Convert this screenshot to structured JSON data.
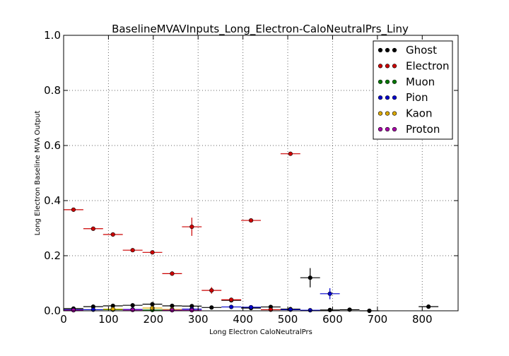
{
  "chart_data": {
    "type": "scatter",
    "title": "BaselineMVAVInputs_Long_Electron-CaloNeutralPrs_Liny",
    "xlabel": "Long Electron CaloNeutralPrs",
    "ylabel": "Long Electron Baseline MVA Output",
    "xlim": [
      0,
      880
    ],
    "ylim": [
      0,
      1.0
    ],
    "grid": true,
    "legend_position": "top-right",
    "xticks": [
      0,
      100,
      200,
      300,
      400,
      500,
      600,
      700,
      800
    ],
    "yticks": [
      0.0,
      0.2,
      0.4,
      0.6,
      0.8,
      1.0
    ],
    "series": [
      {
        "name": "Ghost",
        "color": "#000000",
        "points": [
          {
            "x": 22,
            "y": 0.008,
            "xerr": 22,
            "yerr": 0.002
          },
          {
            "x": 66,
            "y": 0.015,
            "xerr": 22,
            "yerr": 0.002
          },
          {
            "x": 110,
            "y": 0.018,
            "xerr": 22,
            "yerr": 0.002
          },
          {
            "x": 154,
            "y": 0.02,
            "xerr": 22,
            "yerr": 0.003
          },
          {
            "x": 198,
            "y": 0.024,
            "xerr": 22,
            "yerr": 0.004
          },
          {
            "x": 242,
            "y": 0.018,
            "xerr": 22,
            "yerr": 0.003
          },
          {
            "x": 286,
            "y": 0.017,
            "xerr": 22,
            "yerr": 0.003
          },
          {
            "x": 330,
            "y": 0.012,
            "xerr": 22,
            "yerr": 0.003
          },
          {
            "x": 374,
            "y": 0.038,
            "xerr": 22,
            "yerr": 0.005
          },
          {
            "x": 418,
            "y": 0.01,
            "xerr": 22,
            "yerr": 0.003
          },
          {
            "x": 462,
            "y": 0.014,
            "xerr": 22,
            "yerr": 0.004
          },
          {
            "x": 506,
            "y": 0.006,
            "xerr": 22,
            "yerr": 0.003
          },
          {
            "x": 550,
            "y": 0.12,
            "xerr": 22,
            "yerr": 0.035
          },
          {
            "x": 594,
            "y": 0.003,
            "xerr": 22,
            "yerr": 0.003
          },
          {
            "x": 638,
            "y": 0.004,
            "xerr": 22,
            "yerr": 0.003
          },
          {
            "x": 682,
            "y": 0.0,
            "xerr": 22,
            "yerr": 0.002
          },
          {
            "x": 814,
            "y": 0.015,
            "xerr": 22,
            "yerr": 0.003
          }
        ]
      },
      {
        "name": "Electron",
        "color": "#cc0000",
        "points": [
          {
            "x": 22,
            "y": 0.367,
            "xerr": 22,
            "yerr": 0.004
          },
          {
            "x": 66,
            "y": 0.298,
            "xerr": 22,
            "yerr": 0.004
          },
          {
            "x": 110,
            "y": 0.277,
            "xerr": 22,
            "yerr": 0.005
          },
          {
            "x": 154,
            "y": 0.22,
            "xerr": 22,
            "yerr": 0.005
          },
          {
            "x": 198,
            "y": 0.212,
            "xerr": 22,
            "yerr": 0.006
          },
          {
            "x": 242,
            "y": 0.135,
            "xerr": 22,
            "yerr": 0.008
          },
          {
            "x": 286,
            "y": 0.305,
            "xerr": 22,
            "yerr": 0.033
          },
          {
            "x": 330,
            "y": 0.074,
            "xerr": 22,
            "yerr": 0.012
          },
          {
            "x": 374,
            "y": 0.04,
            "xerr": 22,
            "yerr": 0.006
          },
          {
            "x": 418,
            "y": 0.328,
            "xerr": 22,
            "yerr": 0.004
          },
          {
            "x": 462,
            "y": 0.004,
            "xerr": 22,
            "yerr": 0.003
          },
          {
            "x": 506,
            "y": 0.57,
            "xerr": 22,
            "yerr": 0.004
          }
        ]
      },
      {
        "name": "Muon",
        "color": "#007700",
        "points": [
          {
            "x": 22,
            "y": 0.004,
            "xerr": 22,
            "yerr": 0.002
          },
          {
            "x": 110,
            "y": 0.004,
            "xerr": 22,
            "yerr": 0.002
          },
          {
            "x": 198,
            "y": 0.003,
            "xerr": 22,
            "yerr": 0.002
          }
        ]
      },
      {
        "name": "Pion",
        "color": "#0000cc",
        "points": [
          {
            "x": 22,
            "y": 0.004,
            "xerr": 22,
            "yerr": 0.002
          },
          {
            "x": 66,
            "y": 0.004,
            "xerr": 22,
            "yerr": 0.002
          },
          {
            "x": 154,
            "y": 0.005,
            "xerr": 22,
            "yerr": 0.002
          },
          {
            "x": 242,
            "y": 0.004,
            "xerr": 22,
            "yerr": 0.002
          },
          {
            "x": 286,
            "y": 0.006,
            "xerr": 22,
            "yerr": 0.002
          },
          {
            "x": 374,
            "y": 0.014,
            "xerr": 22,
            "yerr": 0.003
          },
          {
            "x": 418,
            "y": 0.013,
            "xerr": 22,
            "yerr": 0.003
          },
          {
            "x": 506,
            "y": 0.004,
            "xerr": 22,
            "yerr": 0.002
          },
          {
            "x": 550,
            "y": 0.002,
            "xerr": 22,
            "yerr": 0.002
          },
          {
            "x": 594,
            "y": 0.062,
            "xerr": 22,
            "yerr": 0.02
          }
        ]
      },
      {
        "name": "Kaon",
        "color": "#ddaa00",
        "points": [
          {
            "x": 110,
            "y": 0.006,
            "xerr": 22,
            "yerr": 0.002
          },
          {
            "x": 198,
            "y": 0.01,
            "xerr": 22,
            "yerr": 0.003
          },
          {
            "x": 242,
            "y": 0.005,
            "xerr": 22,
            "yerr": 0.002
          }
        ]
      },
      {
        "name": "Proton",
        "color": "#aa00aa",
        "points": [
          {
            "x": 22,
            "y": 0.002,
            "xerr": 22,
            "yerr": 0.001
          },
          {
            "x": 154,
            "y": 0.003,
            "xerr": 22,
            "yerr": 0.002
          },
          {
            "x": 242,
            "y": 0.002,
            "xerr": 22,
            "yerr": 0.002
          },
          {
            "x": 286,
            "y": 0.002,
            "xerr": 22,
            "yerr": 0.002
          }
        ]
      }
    ]
  }
}
